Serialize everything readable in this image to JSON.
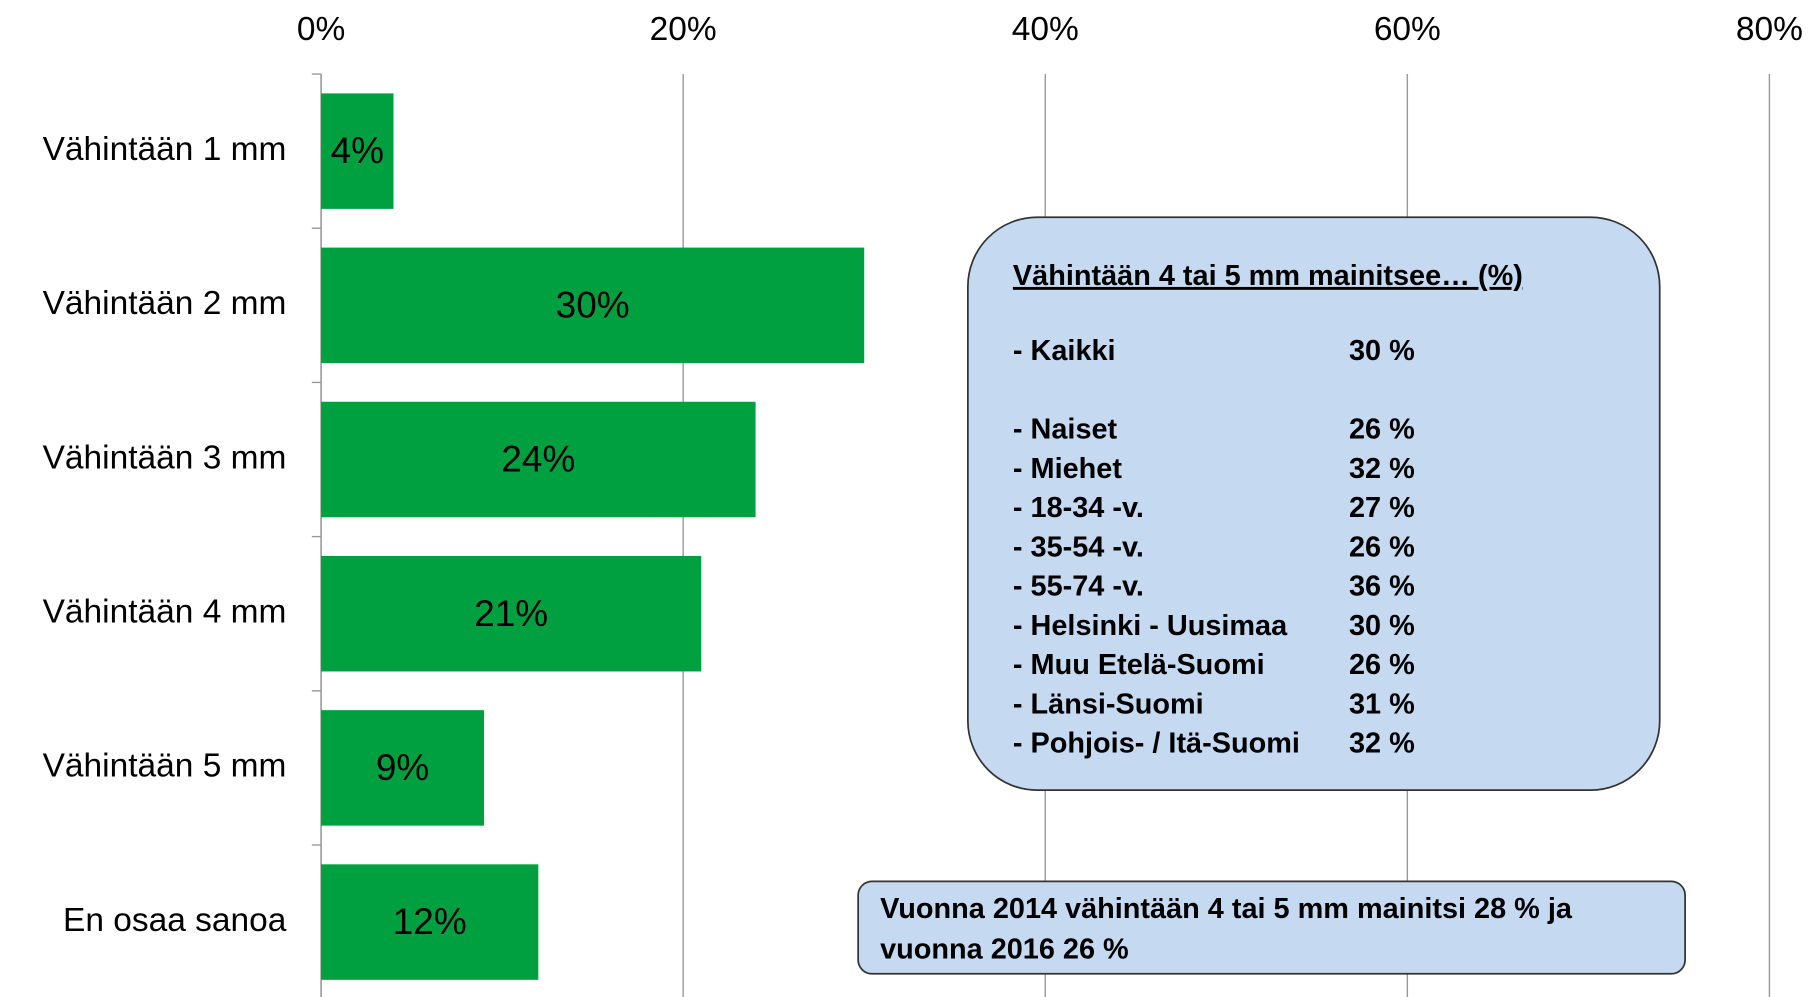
{
  "chart_data": {
    "type": "bar",
    "orientation": "horizontal",
    "categories": [
      "Vähintään 1 mm",
      "Vähintään 2 mm",
      "Vähintään 3 mm",
      "Vähintään 4 mm",
      "Vähintään 5 mm",
      "En osaa sanoa"
    ],
    "values": [
      4,
      30,
      24,
      21,
      9,
      12
    ],
    "value_labels": [
      "4%",
      "30%",
      "24%",
      "21%",
      "9%",
      "12%"
    ],
    "color": "#00a040",
    "xlim": [
      0,
      80
    ],
    "xticks": [
      {
        "value": 0,
        "label": "0%"
      },
      {
        "value": 20,
        "label": "20%"
      },
      {
        "value": 40,
        "label": "40%"
      },
      {
        "value": 60,
        "label": "60%"
      },
      {
        "value": 80,
        "label": "80%"
      }
    ],
    "grid": true,
    "info_box": {
      "title": "Vähintään 4 tai 5 mm mainitsee… (%)",
      "rows": [
        [
          "- Kaikki",
          "30 %"
        ],
        [
          "- Naiset",
          "26 %"
        ],
        [
          "- Miehet",
          "32 %"
        ],
        [
          "- 18-34 -v.",
          "27 %"
        ],
        [
          "- 35-54 -v.",
          "26 %"
        ],
        [
          "- 55-74 -v.",
          "36 %"
        ],
        [
          "- Helsinki - Uusimaa",
          "30 %"
        ],
        [
          "- Muu Etelä-Suomi",
          "26 %"
        ],
        [
          "- Länsi-Suomi",
          "31 %"
        ],
        [
          "- Pohjois- / Itä-Suomi",
          "32 %"
        ]
      ]
    },
    "note_lines": [
      "Vuonna 2014 vähintään 4 tai 5 mm mainitsi 28 % ja",
      "vuonna 2016 26 %"
    ]
  }
}
